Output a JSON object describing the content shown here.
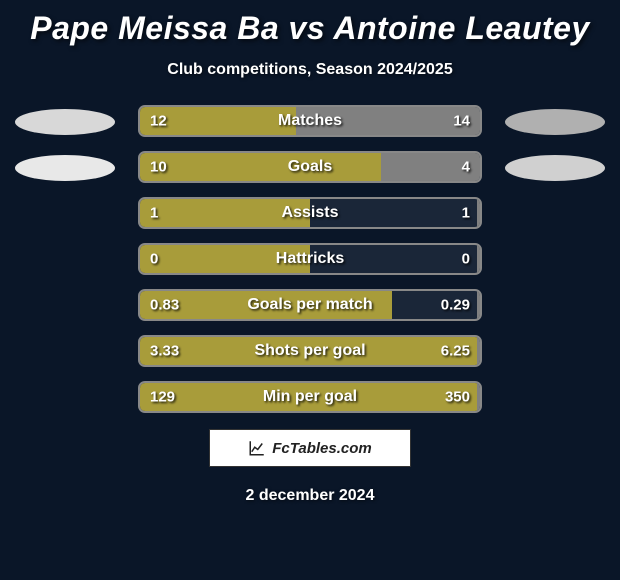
{
  "title": "Pape Meissa Ba vs Antoine Leautey",
  "subtitle": "Club competitions, Season 2024/2025",
  "date": "2 december 2024",
  "watermark": "FcTables.com",
  "background_color": "#0a1628",
  "player1_color": "#a89c3a",
  "player2_color": "#808080",
  "border_color": "#888888",
  "ellipses": {
    "left": [
      "#d8d8d8",
      "#e8e8e8"
    ],
    "right": [
      "#b0b0b0",
      "#d0d0d0"
    ]
  },
  "stats": [
    {
      "label": "Matches",
      "v1": "12",
      "v2": "14",
      "p1": 46,
      "p2": 54
    },
    {
      "label": "Goals",
      "v1": "10",
      "v2": "4",
      "p1": 71,
      "p2": 29
    },
    {
      "label": "Assists",
      "v1": "1",
      "v2": "1",
      "p1": 50,
      "p2": 1
    },
    {
      "label": "Hattricks",
      "v1": "0",
      "v2": "0",
      "p1": 50,
      "p2": 1
    },
    {
      "label": "Goals per match",
      "v1": "0.83",
      "v2": "0.29",
      "p1": 74,
      "p2": 1
    },
    {
      "label": "Shots per goal",
      "v1": "3.33",
      "v2": "6.25",
      "p1": 99,
      "p2": 1
    },
    {
      "label": "Min per goal",
      "v1": "129",
      "v2": "350",
      "p1": 99,
      "p2": 1
    }
  ]
}
